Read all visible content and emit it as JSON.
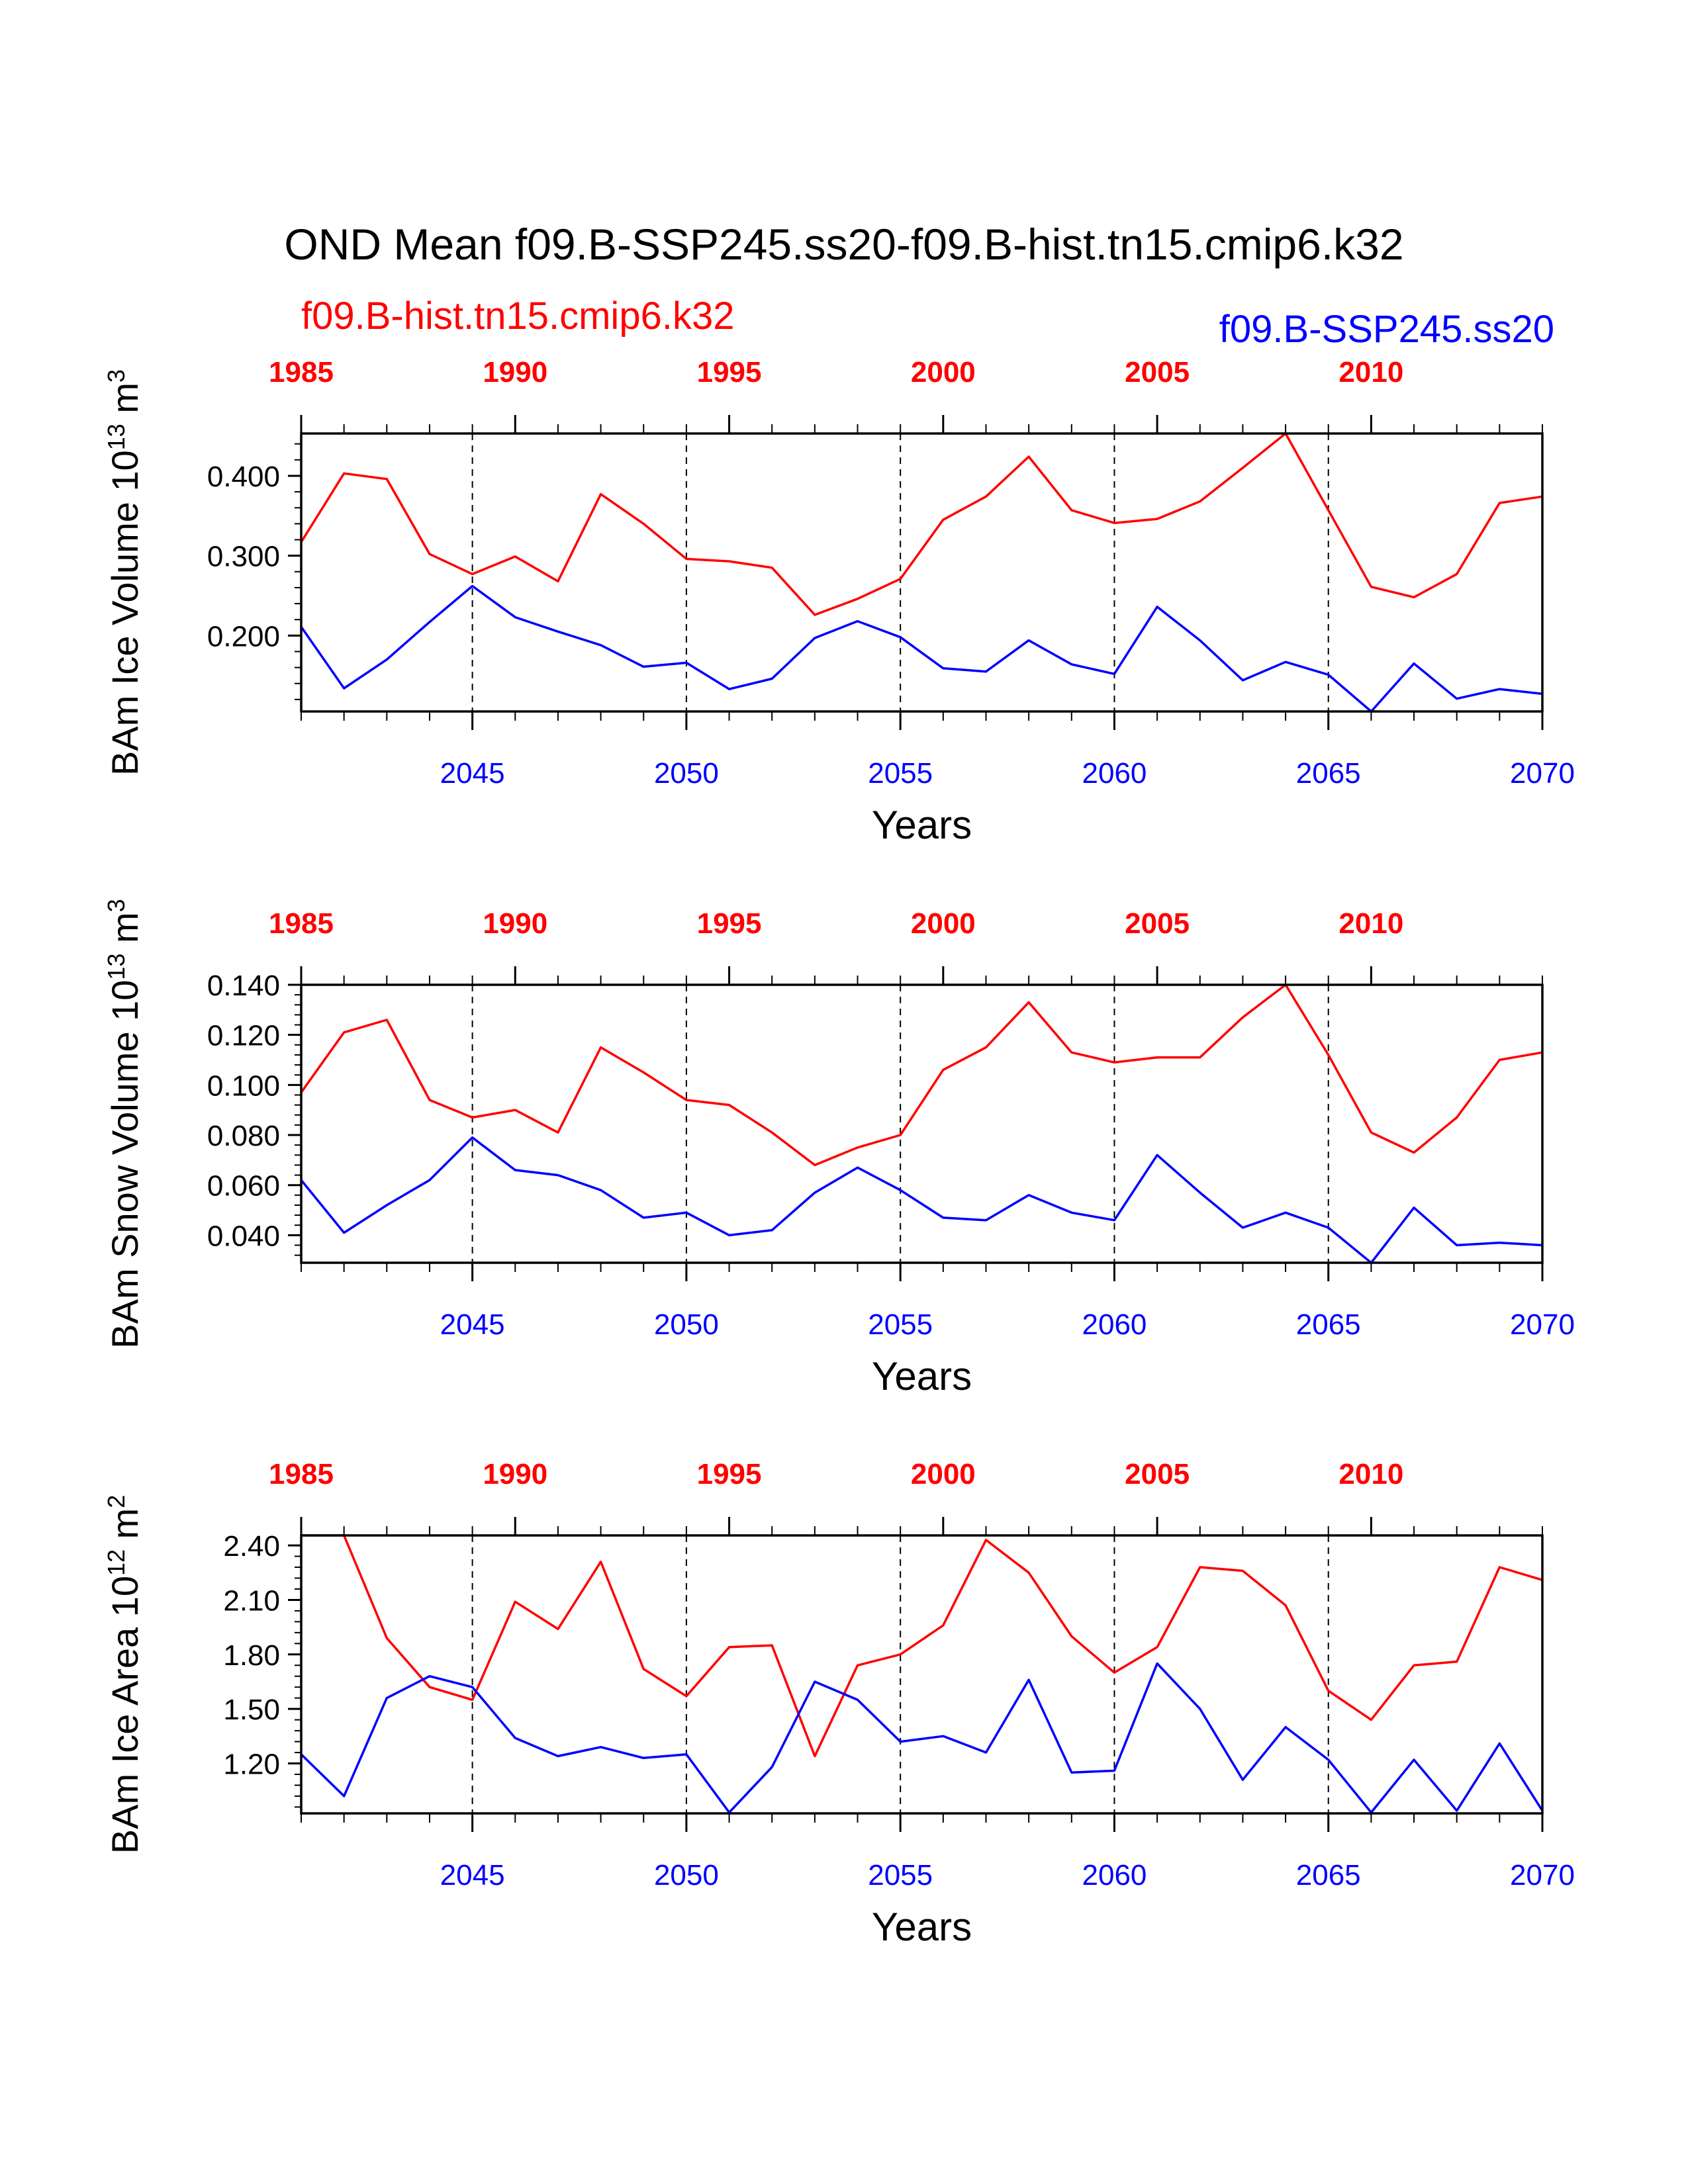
{
  "title": "OND Mean f09.B-SSP245.ss20-f09.B-hist.tn15.cmip6.k32",
  "legend": {
    "hist_label": "f09.B-hist.tn15.cmip6.k32",
    "ssp_label": "f09.B-SSP245.ss20"
  },
  "colors": {
    "hist": "#ff0000",
    "ssp": "#0000ff",
    "axis": "#000000"
  },
  "chart_data": [
    {
      "type": "line",
      "ylabel": "BAm Ice Volume 10",
      "ylabel_exp": "13",
      "ylabel_unit": " m",
      "ylabel_unit_exp": "3",
      "xlabel": "Years",
      "ylim": [
        0.105,
        0.453
      ],
      "yticks": [
        0.2,
        0.3,
        0.4
      ],
      "ytick_labels": [
        "0.200",
        "0.300",
        "0.400"
      ],
      "x_bottom": {
        "min": 2041,
        "max": 2070,
        "ticks": [
          2045,
          2050,
          2055,
          2060,
          2065,
          2070
        ]
      },
      "x_top": {
        "min": 1985,
        "max": 2014,
        "ticks": [
          1985,
          1990,
          1995,
          2000,
          2005,
          2010
        ]
      },
      "series": [
        {
          "name": "f09.B-hist.tn15.cmip6.k32",
          "axis": "top",
          "color": "#ff0000",
          "x": [
            1985,
            1986,
            1987,
            1988,
            1989,
            1990,
            1991,
            1992,
            1993,
            1994,
            1995,
            1996,
            1997,
            1998,
            1999,
            2000,
            2001,
            2002,
            2003,
            2004,
            2005,
            2006,
            2007,
            2008,
            2009,
            2010,
            2011,
            2012,
            2013,
            2014
          ],
          "values": [
            0.317,
            0.403,
            0.396,
            0.302,
            0.277,
            0.299,
            0.268,
            0.377,
            0.34,
            0.296,
            0.293,
            0.285,
            0.226,
            0.246,
            0.271,
            0.345,
            0.374,
            0.424,
            0.357,
            0.341,
            0.346,
            0.368,
            0.41,
            0.453,
            0.357,
            0.261,
            0.248,
            0.277,
            0.366,
            0.374
          ]
        },
        {
          "name": "f09.B-SSP245.ss20",
          "axis": "bottom",
          "color": "#0000ff",
          "x": [
            2041,
            2042,
            2043,
            2044,
            2045,
            2046,
            2047,
            2048,
            2049,
            2050,
            2051,
            2052,
            2053,
            2054,
            2055,
            2056,
            2057,
            2058,
            2059,
            2060,
            2061,
            2062,
            2063,
            2064,
            2065,
            2066,
            2067,
            2068,
            2069,
            2070
          ],
          "values": [
            0.211,
            0.134,
            0.17,
            0.217,
            0.262,
            0.223,
            0.205,
            0.188,
            0.161,
            0.166,
            0.133,
            0.146,
            0.197,
            0.218,
            0.198,
            0.159,
            0.155,
            0.194,
            0.164,
            0.152,
            0.236,
            0.194,
            0.144,
            0.167,
            0.151,
            0.105,
            0.165,
            0.121,
            0.133,
            0.127
          ]
        }
      ]
    },
    {
      "type": "line",
      "ylabel": "BAm Snow Volume 10",
      "ylabel_exp": "13",
      "ylabel_unit": " m",
      "ylabel_unit_exp": "3",
      "xlabel": "Years",
      "ylim": [
        0.029,
        0.14
      ],
      "yticks": [
        0.04,
        0.06,
        0.08,
        0.1,
        0.12,
        0.14
      ],
      "ytick_labels": [
        "0.040",
        "0.060",
        "0.080",
        "0.100",
        "0.120",
        "0.140"
      ],
      "x_bottom": {
        "min": 2041,
        "max": 2070,
        "ticks": [
          2045,
          2050,
          2055,
          2060,
          2065,
          2070
        ]
      },
      "x_top": {
        "min": 1985,
        "max": 2014,
        "ticks": [
          1985,
          1990,
          1995,
          2000,
          2005,
          2010
        ]
      },
      "series": [
        {
          "name": "f09.B-hist.tn15.cmip6.k32",
          "axis": "top",
          "color": "#ff0000",
          "x": [
            1985,
            1986,
            1987,
            1988,
            1989,
            1990,
            1991,
            1992,
            1993,
            1994,
            1995,
            1996,
            1997,
            1998,
            1999,
            2000,
            2001,
            2002,
            2003,
            2004,
            2005,
            2006,
            2007,
            2008,
            2009,
            2010,
            2011,
            2012,
            2013,
            2014
          ],
          "values": [
            0.097,
            0.121,
            0.126,
            0.094,
            0.087,
            0.09,
            0.081,
            0.115,
            0.105,
            0.094,
            0.092,
            0.081,
            0.068,
            0.075,
            0.08,
            0.106,
            0.115,
            0.133,
            0.113,
            0.109,
            0.111,
            0.111,
            0.127,
            0.14,
            0.112,
            0.081,
            0.073,
            0.087,
            0.11,
            0.113
          ]
        },
        {
          "name": "f09.B-SSP245.ss20",
          "axis": "bottom",
          "color": "#0000ff",
          "x": [
            2041,
            2042,
            2043,
            2044,
            2045,
            2046,
            2047,
            2048,
            2049,
            2050,
            2051,
            2052,
            2053,
            2054,
            2055,
            2056,
            2057,
            2058,
            2059,
            2060,
            2061,
            2062,
            2063,
            2064,
            2065,
            2066,
            2067,
            2068,
            2069,
            2070
          ],
          "values": [
            0.062,
            0.041,
            0.052,
            0.062,
            0.079,
            0.066,
            0.064,
            0.058,
            0.047,
            0.049,
            0.04,
            0.042,
            0.057,
            0.067,
            0.058,
            0.047,
            0.046,
            0.056,
            0.049,
            0.046,
            0.072,
            0.057,
            0.043,
            0.049,
            0.043,
            0.029,
            0.051,
            0.036,
            0.037,
            0.036
          ]
        }
      ]
    },
    {
      "type": "line",
      "ylabel": "BAm Ice Area 10",
      "ylabel_exp": "12",
      "ylabel_unit": " m",
      "ylabel_unit_exp": "2",
      "xlabel": "Years",
      "ylim": [
        0.925,
        2.455
      ],
      "yticks": [
        1.2,
        1.5,
        1.8,
        2.1,
        2.4
      ],
      "ytick_labels": [
        "1.20",
        "1.50",
        "1.80",
        "2.10",
        "2.40"
      ],
      "x_bottom": {
        "min": 2041,
        "max": 2070,
        "ticks": [
          2045,
          2050,
          2055,
          2060,
          2065,
          2070
        ]
      },
      "x_top": {
        "min": 1985,
        "max": 2014,
        "ticks": [
          1985,
          1990,
          1995,
          2000,
          2005,
          2010
        ]
      },
      "series": [
        {
          "name": "f09.B-hist.tn15.cmip6.k32",
          "axis": "top",
          "color": "#ff0000",
          "x": [
            1985,
            1986,
            1987,
            1988,
            1989,
            1990,
            1991,
            1992,
            1993,
            1994,
            1995,
            1996,
            1997,
            1998,
            1999,
            2000,
            2001,
            2002,
            2003,
            2004,
            2005,
            2006,
            2007,
            2008,
            2009,
            2010,
            2011,
            2012,
            2013,
            2014
          ],
          "values": [
            2.455,
            2.455,
            1.89,
            1.62,
            1.55,
            2.09,
            1.94,
            2.31,
            1.72,
            1.57,
            1.84,
            1.85,
            1.24,
            1.74,
            1.8,
            1.96,
            2.43,
            2.25,
            1.9,
            1.7,
            1.84,
            2.28,
            2.26,
            2.07,
            1.6,
            1.44,
            1.74,
            1.76,
            2.28,
            2.21
          ]
        },
        {
          "name": "f09.B-SSP245.ss20",
          "axis": "bottom",
          "color": "#0000ff",
          "x": [
            2041,
            2042,
            2043,
            2044,
            2045,
            2046,
            2047,
            2048,
            2049,
            2050,
            2051,
            2052,
            2053,
            2054,
            2055,
            2056,
            2057,
            2058,
            2059,
            2060,
            2061,
            2062,
            2063,
            2064,
            2065,
            2066,
            2067,
            2068,
            2069,
            2070
          ],
          "values": [
            1.25,
            1.02,
            1.56,
            1.68,
            1.62,
            1.34,
            1.24,
            1.29,
            1.23,
            1.25,
            0.93,
            1.18,
            1.65,
            1.55,
            1.32,
            1.35,
            1.26,
            1.66,
            1.15,
            1.16,
            1.75,
            1.5,
            1.11,
            1.4,
            1.22,
            0.93,
            1.22,
            0.94,
            1.31,
            0.94
          ]
        }
      ]
    }
  ]
}
